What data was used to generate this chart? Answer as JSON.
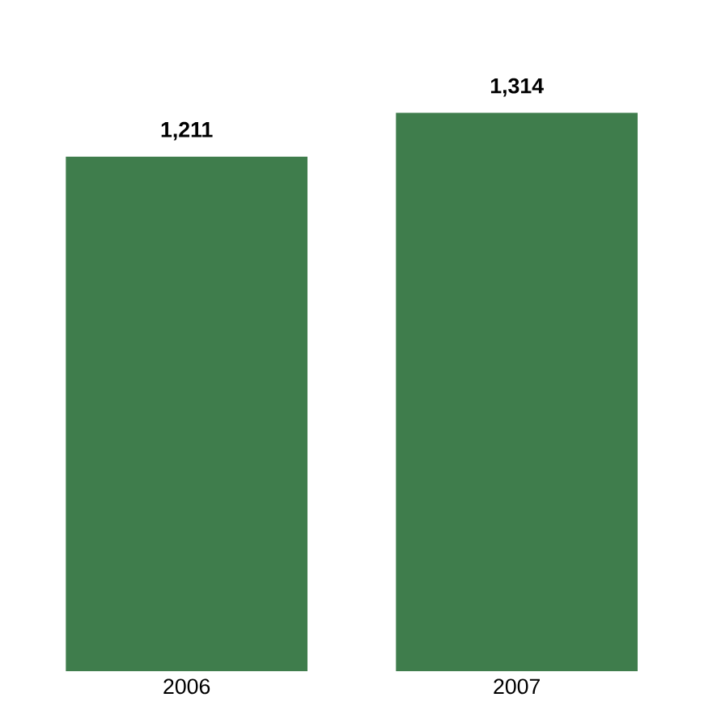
{
  "chart_data": {
    "type": "bar",
    "categories": [
      "2006",
      "2007"
    ],
    "values": [
      1211,
      1314
    ],
    "color": "#3f7d4c",
    "value_labels": [
      "1,211",
      "1,314"
    ]
  }
}
